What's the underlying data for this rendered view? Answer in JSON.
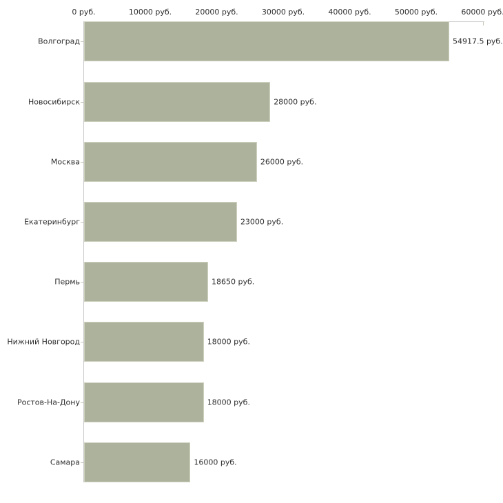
{
  "chart_data": {
    "type": "bar",
    "orientation": "horizontal",
    "title": "",
    "categories": [
      "Волгоград",
      "Новосибирск",
      "Москва",
      "Екатеринбург",
      "Пермь",
      "Нижний Новгород",
      "Ростов-На-Дону",
      "Самара"
    ],
    "values": [
      54917.5,
      28000,
      26000,
      23000,
      18650,
      18000,
      18000,
      16000
    ],
    "value_labels": [
      "54917.5 руб.",
      "28000 руб.",
      "26000 руб.",
      "23000 руб.",
      "18650 руб.",
      "18000 руб.",
      "18000 руб.",
      "16000 руб."
    ],
    "x_axis": {
      "position": "top",
      "min": 0,
      "max": 60000,
      "tick_values": [
        0,
        10000,
        20000,
        30000,
        40000,
        50000,
        60000
      ],
      "tick_labels": [
        "0 руб.",
        "10000 руб.",
        "20000 руб.",
        "30000 руб.",
        "40000 руб.",
        "50000 руб.",
        "60000 руб."
      ]
    },
    "unit": "руб.",
    "grid": false,
    "legend": null,
    "colors": {
      "bar_fill": "#acb29b",
      "bar_border": "#ced2c0",
      "axis_line": "#c9c9c9",
      "tick_mark": "#c4c8b4",
      "label_text": "#2e2e2e",
      "background": "#ffffff"
    }
  }
}
